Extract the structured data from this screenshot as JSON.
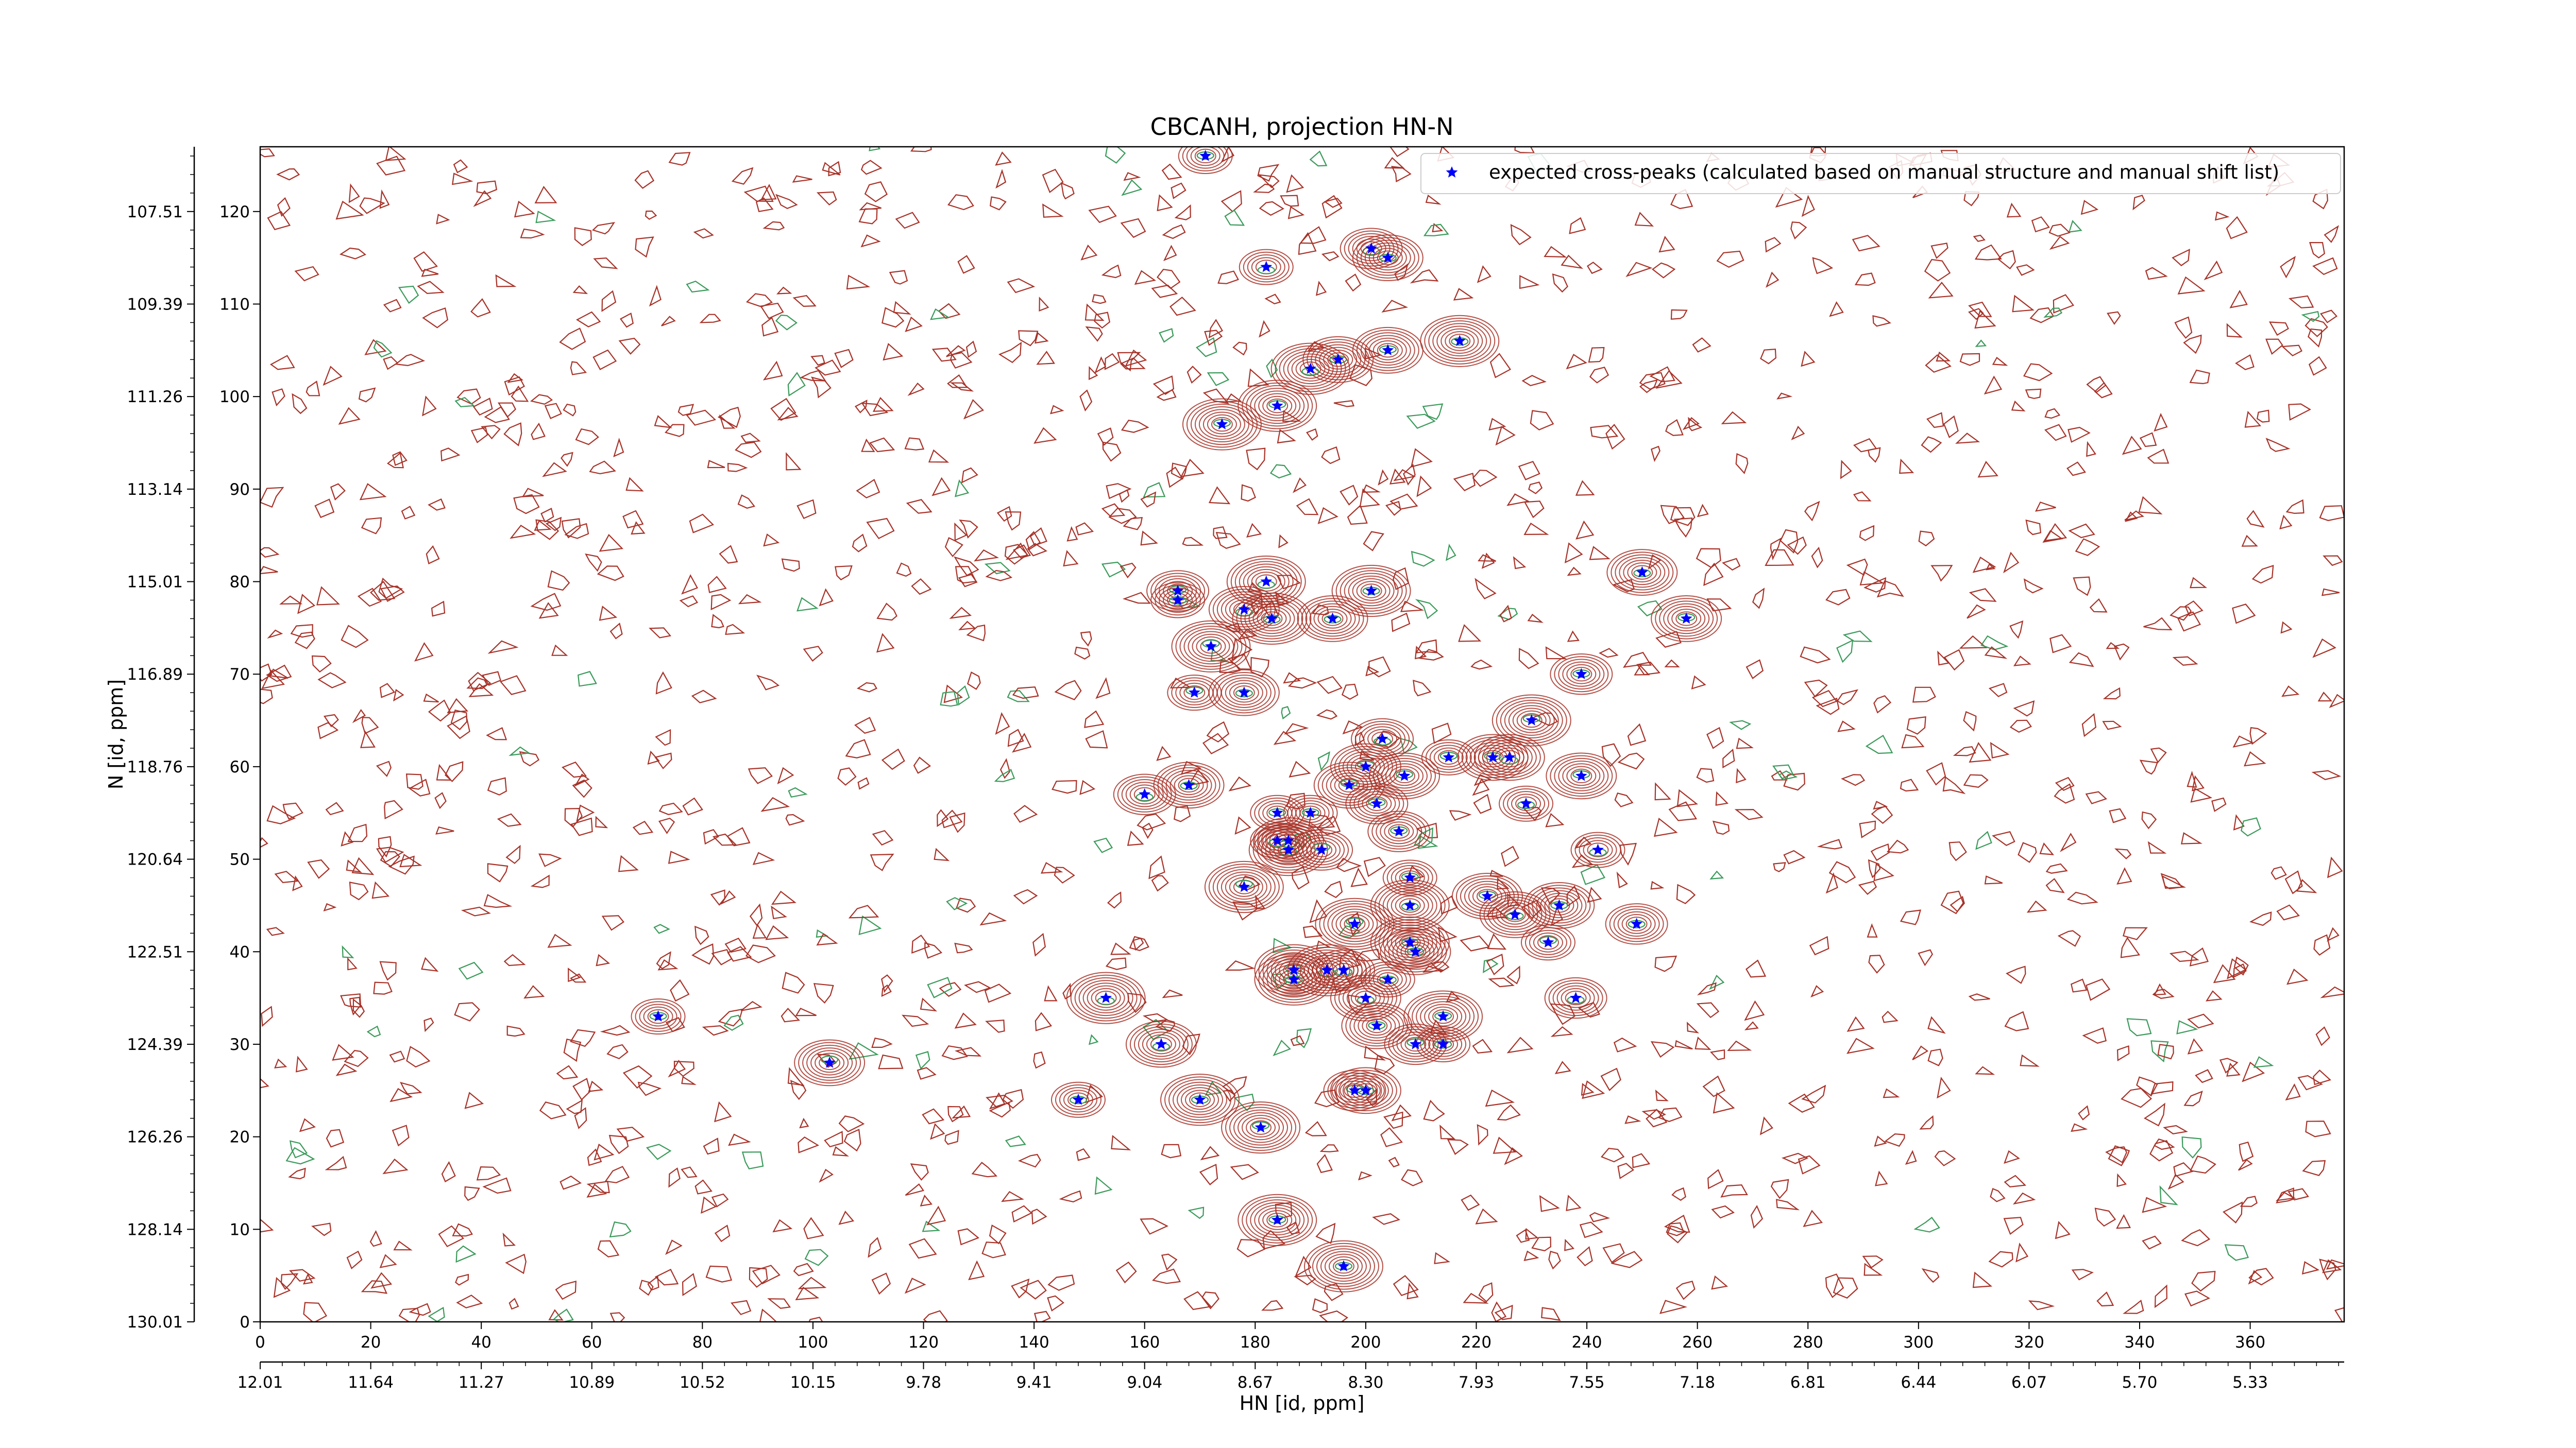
{
  "chart_data": {
    "type": "scatter",
    "title": "CBCANH, projection HN-N",
    "xlabel": "HN [id, ppm]",
    "ylabel": "N [id, ppm]",
    "grid": false,
    "legend_position": "top-right",
    "x_index_ticks": [
      "0",
      "20",
      "40",
      "60",
      "80",
      "100",
      "120",
      "140",
      "160",
      "180",
      "200",
      "220",
      "240",
      "260",
      "280",
      "300",
      "320",
      "340",
      "360"
    ],
    "x_ppm_ticks": [
      "12.01",
      "11.64",
      "11.27",
      "10.89",
      "10.52",
      "10.15",
      "9.78",
      "9.41",
      "9.04",
      "8.67",
      "8.30",
      "7.93",
      "7.55",
      "7.18",
      "6.81",
      "6.44",
      "6.07",
      "5.70",
      "5.33"
    ],
    "y_index_ticks": [
      "0",
      "10",
      "20",
      "30",
      "40",
      "50",
      "60",
      "70",
      "80",
      "90",
      "100",
      "110",
      "120"
    ],
    "y_ppm_ticks": [
      "130.01",
      "128.14",
      "126.26",
      "124.39",
      "122.51",
      "120.64",
      "118.76",
      "116.89",
      "115.01",
      "113.14",
      "111.26",
      "109.39",
      "107.51"
    ],
    "xlim": [
      0,
      377
    ],
    "ylim": [
      0,
      127
    ],
    "series": [
      {
        "name": "expected cross-peaks (calculated based on manual structure and manual shift list)",
        "color": "#0000ff",
        "marker": "star",
        "points": [
          [
            171,
            126
          ],
          [
            182,
            114
          ],
          [
            201,
            116
          ],
          [
            204,
            115
          ],
          [
            195,
            104
          ],
          [
            204,
            105
          ],
          [
            217,
            106
          ],
          [
            190,
            103
          ],
          [
            184,
            99
          ],
          [
            174,
            97
          ],
          [
            182,
            80
          ],
          [
            166,
            79
          ],
          [
            166,
            78
          ],
          [
            178,
            77
          ],
          [
            183,
            76
          ],
          [
            194,
            76
          ],
          [
            201,
            79
          ],
          [
            250,
            81
          ],
          [
            258,
            76
          ],
          [
            172,
            73
          ],
          [
            169,
            68
          ],
          [
            178,
            68
          ],
          [
            239,
            70
          ],
          [
            230,
            65
          ],
          [
            203,
            63
          ],
          [
            200,
            60
          ],
          [
            207,
            59
          ],
          [
            215,
            61
          ],
          [
            223,
            61
          ],
          [
            226,
            61
          ],
          [
            239,
            59
          ],
          [
            160,
            57
          ],
          [
            168,
            58
          ],
          [
            197,
            58
          ],
          [
            202,
            56
          ],
          [
            184,
            55
          ],
          [
            190,
            55
          ],
          [
            206,
            53
          ],
          [
            186,
            52
          ],
          [
            186,
            51
          ],
          [
            184,
            52
          ],
          [
            192,
            51
          ],
          [
            229,
            56
          ],
          [
            242,
            51
          ],
          [
            208,
            48
          ],
          [
            178,
            47
          ],
          [
            222,
            46
          ],
          [
            227,
            44
          ],
          [
            235,
            45
          ],
          [
            208,
            45
          ],
          [
            249,
            43
          ],
          [
            198,
            43
          ],
          [
            208,
            41
          ],
          [
            209,
            40
          ],
          [
            187,
            38
          ],
          [
            193,
            38
          ],
          [
            196,
            38
          ],
          [
            187,
            37
          ],
          [
            204,
            37
          ],
          [
            233,
            41
          ],
          [
            200,
            35
          ],
          [
            153,
            35
          ],
          [
            214,
            33
          ],
          [
            238,
            35
          ],
          [
            202,
            32
          ],
          [
            214,
            30
          ],
          [
            209,
            30
          ],
          [
            163,
            30
          ],
          [
            170,
            24
          ],
          [
            148,
            24
          ],
          [
            181,
            21
          ],
          [
            198,
            25
          ],
          [
            200,
            25
          ],
          [
            184,
            11
          ],
          [
            196,
            6
          ],
          [
            72,
            33
          ],
          [
            103,
            28
          ]
        ]
      }
    ]
  }
}
